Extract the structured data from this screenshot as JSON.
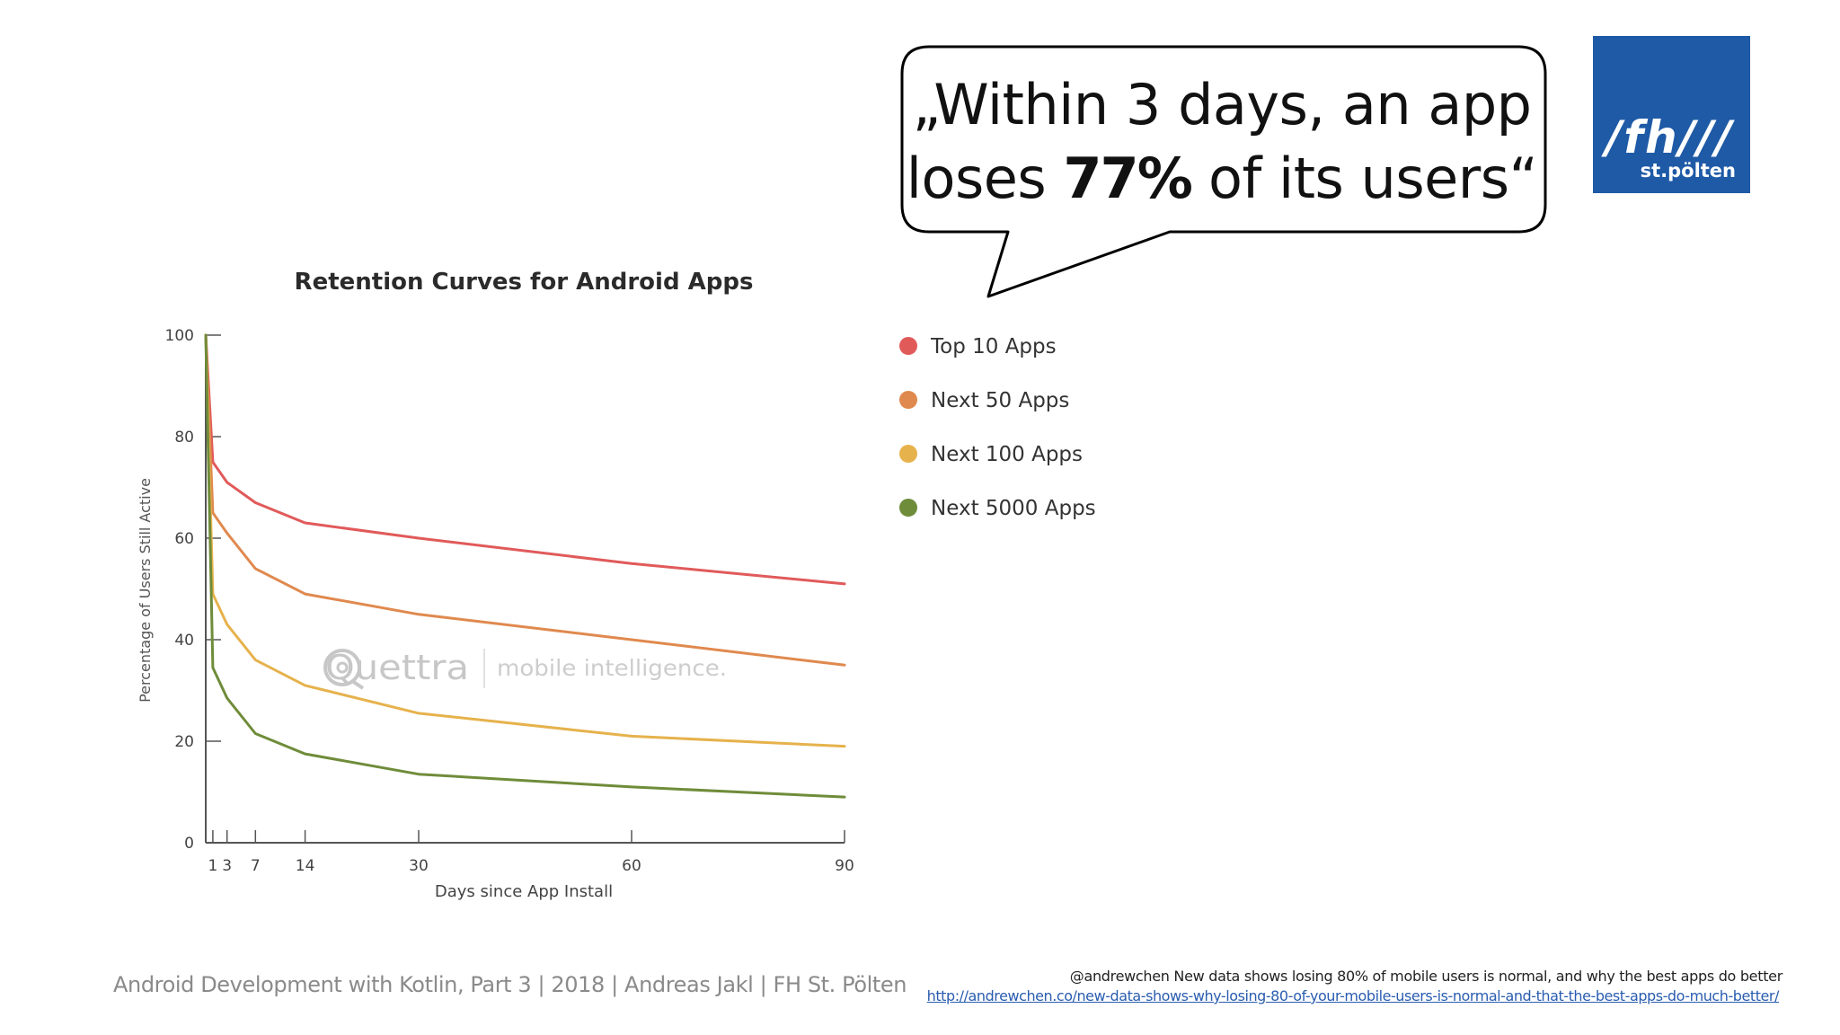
{
  "slide": {
    "quote_line1": "„Within 3 days, an app",
    "quote_line2_pre": "loses ",
    "quote_line2_bold": "77%",
    "quote_line2_post": " of its users“",
    "logo_main": "/fh///",
    "logo_sub": "st.pölten",
    "footer_left": "Android Development with Kotlin, Part 3 | 2018 | Andreas Jakl | FH St. Pölten",
    "footer_credit": "@andrewchen New data shows losing 80% of mobile users is normal, and why the best apps do better",
    "footer_url": "http://andrewchen.co/new-data-shows-why-losing-80-of-your-mobile-users-is-normal-and-that-the-best-apps-do-much-better/"
  },
  "chart_data": {
    "type": "line",
    "title": "Retention Curves for Android Apps",
    "xlabel": "Days since App Install",
    "ylabel": "Percentage of Users Still Active",
    "xlim": [
      0,
      90
    ],
    "ylim": [
      0,
      100
    ],
    "x_ticks": [
      1,
      3,
      7,
      14,
      30,
      60,
      90
    ],
    "y_ticks": [
      0,
      20,
      40,
      60,
      80,
      100
    ],
    "legend_position": "right",
    "watermark_brand": "Quettra",
    "watermark_tagline": "mobile intelligence.",
    "x": [
      0,
      1,
      3,
      7,
      14,
      30,
      60,
      90
    ],
    "series": [
      {
        "name": "Top 10 Apps",
        "color": "#e15a5a",
        "values": [
          100,
          75,
          71,
          67,
          63,
          60,
          55,
          51
        ]
      },
      {
        "name": "Next 50 Apps",
        "color": "#e0894e",
        "values": [
          100,
          65,
          61,
          54,
          49,
          45,
          40,
          35
        ]
      },
      {
        "name": "Next 100 Apps",
        "color": "#e6b24c",
        "values": [
          100,
          49,
          43,
          36,
          31,
          25.5,
          21,
          19
        ]
      },
      {
        "name": "Next 5000 Apps",
        "color": "#6f8c3a",
        "values": [
          100,
          34.5,
          28.5,
          21.5,
          17.5,
          13.5,
          11,
          9
        ]
      }
    ]
  }
}
